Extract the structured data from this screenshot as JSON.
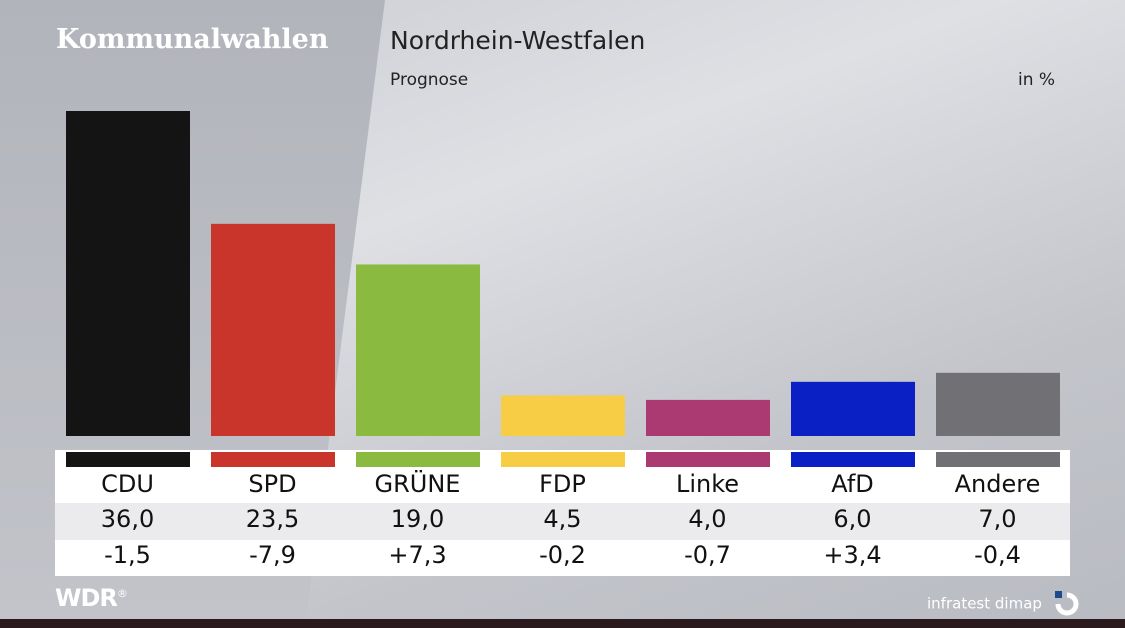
{
  "header": {
    "brand": "Kommunalwahlen",
    "title": "Nordrhein-Westfalen",
    "subtitle": "Prognose",
    "unit": "in %"
  },
  "footer": {
    "broadcaster_logo": "WDR",
    "pollster_logo": "infratest dimap"
  },
  "chart_data": {
    "type": "bar",
    "title": "Nordrhein-Westfalen",
    "subtitle": "Prognose",
    "unit": "in %",
    "categories": [
      "CDU",
      "SPD",
      "GRÜNE",
      "FDP",
      "Linke",
      "AfD",
      "Andere"
    ],
    "values": [
      36.0,
      23.5,
      19.0,
      4.5,
      4.0,
      6.0,
      7.0
    ],
    "value_labels": [
      "36,0",
      "23,5",
      "19,0",
      "4,5",
      "4,0",
      "6,0",
      "7,0"
    ],
    "change_labels": [
      "-1,5",
      "-7,9",
      "+7,3",
      "-0,2",
      "-0,7",
      "+3,4",
      "-0,4"
    ],
    "colors": [
      "#141414",
      "#c9342b",
      "#8aba40",
      "#f6cd45",
      "#ac3a72",
      "#0a20c4",
      "#717175"
    ],
    "ylim": [
      0,
      36
    ],
    "grid": false
  }
}
